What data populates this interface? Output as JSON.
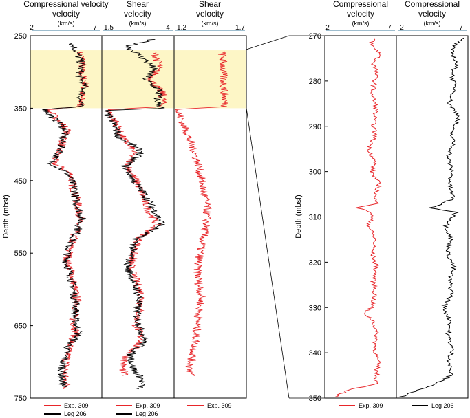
{
  "colors": {
    "exp309": "#e8262a",
    "leg206": "#000000",
    "highlight": "#fdf6c6",
    "axis": "#000000",
    "scalebar": "#7fa7bd"
  },
  "chart_data": [
    {
      "type": "line",
      "title": "Compressional velocity",
      "units": "(km/s)",
      "xlim": [
        2,
        7
      ],
      "xticks": [
        "2",
        "7"
      ],
      "ylim": [
        250,
        750
      ],
      "ylabel": "Depth (mbsf)",
      "yticks": [
        "250",
        "350",
        "450",
        "550",
        "650",
        "750"
      ],
      "highlight_depth": [
        270,
        350
      ],
      "legend": [
        "Exp. 309",
        "Leg 206"
      ],
      "series": [
        {
          "name": "Exp. 309",
          "color": "#e8262a",
          "depth_range": [
            272,
            738
          ],
          "points": [
            [
              272,
              5.4
            ],
            [
              285,
              5.7
            ],
            [
              300,
              5.5
            ],
            [
              315,
              5.9
            ],
            [
              330,
              5.6
            ],
            [
              348,
              5.5
            ],
            [
              352,
              3.2
            ],
            [
              365,
              3.9
            ],
            [
              380,
              4.6
            ],
            [
              395,
              4.3
            ],
            [
              410,
              4.0
            ],
            [
              425,
              3.6
            ],
            [
              440,
              4.8
            ],
            [
              460,
              5.0
            ],
            [
              480,
              5.3
            ],
            [
              500,
              5.5
            ],
            [
              520,
              5.2
            ],
            [
              540,
              4.8
            ],
            [
              560,
              4.6
            ],
            [
              580,
              4.9
            ],
            [
              600,
              5.1
            ],
            [
              620,
              5.3
            ],
            [
              640,
              5.0
            ],
            [
              660,
              5.2
            ],
            [
              680,
              4.7
            ],
            [
              700,
              4.5
            ],
            [
              720,
              4.4
            ],
            [
              738,
              4.6
            ]
          ]
        },
        {
          "name": "Leg 206",
          "color": "#000000",
          "depth_range": [
            260,
            735
          ],
          "points": [
            [
              260,
              4.9
            ],
            [
              275,
              5.3
            ],
            [
              290,
              5.6
            ],
            [
              305,
              5.4
            ],
            [
              320,
              5.8
            ],
            [
              335,
              5.5
            ],
            [
              348,
              5.4
            ],
            [
              352,
              3.0
            ],
            [
              365,
              3.7
            ],
            [
              380,
              4.5
            ],
            [
              395,
              4.2
            ],
            [
              410,
              4.1
            ],
            [
              425,
              3.4
            ],
            [
              440,
              4.6
            ],
            [
              460,
              5.1
            ],
            [
              480,
              5.2
            ],
            [
              500,
              5.6
            ],
            [
              520,
              5.3
            ],
            [
              540,
              4.7
            ],
            [
              560,
              4.5
            ],
            [
              580,
              4.8
            ],
            [
              600,
              5.0
            ],
            [
              620,
              5.2
            ],
            [
              640,
              5.1
            ],
            [
              660,
              5.4
            ],
            [
              680,
              4.6
            ],
            [
              700,
              4.3
            ],
            [
              720,
              4.2
            ],
            [
              735,
              4.3
            ]
          ]
        }
      ]
    },
    {
      "type": "line",
      "title": "Shear velocity",
      "units": "(km/s)",
      "xlim": [
        1.5,
        4
      ],
      "xticks": [
        "1.5",
        "4"
      ],
      "ylim": [
        250,
        750
      ],
      "legend": [
        "Exp. 309",
        "Leg 206"
      ],
      "series": [
        {
          "name": "Exp. 309",
          "color": "#e8262a",
          "depth_range": [
            272,
            720
          ],
          "points": [
            [
              272,
              3.3
            ],
            [
              290,
              3.5
            ],
            [
              310,
              3.2
            ],
            [
              330,
              3.6
            ],
            [
              348,
              3.6
            ],
            [
              352,
              1.7
            ],
            [
              370,
              2.0
            ],
            [
              390,
              2.2
            ],
            [
              410,
              2.6
            ],
            [
              430,
              2.4
            ],
            [
              450,
              2.7
            ],
            [
              470,
              2.9
            ],
            [
              490,
              3.1
            ],
            [
              510,
              3.4
            ],
            [
              530,
              2.8
            ],
            [
              550,
              2.6
            ],
            [
              570,
              2.5
            ],
            [
              590,
              2.7
            ],
            [
              610,
              2.9
            ],
            [
              630,
              2.8
            ],
            [
              650,
              2.7
            ],
            [
              670,
              2.9
            ],
            [
              690,
              2.4
            ],
            [
              705,
              2.2
            ],
            [
              720,
              2.3
            ]
          ]
        },
        {
          "name": "Leg 206",
          "color": "#000000",
          "depth_range": [
            255,
            738
          ],
          "points": [
            [
              255,
              3.2
            ],
            [
              265,
              2.4
            ],
            [
              280,
              2.9
            ],
            [
              295,
              3.3
            ],
            [
              310,
              3.0
            ],
            [
              325,
              3.5
            ],
            [
              340,
              3.4
            ],
            [
              350,
              3.6
            ],
            [
              353,
              1.6
            ],
            [
              370,
              1.9
            ],
            [
              390,
              2.1
            ],
            [
              410,
              2.9
            ],
            [
              430,
              2.3
            ],
            [
              450,
              2.6
            ],
            [
              470,
              3.0
            ],
            [
              490,
              3.3
            ],
            [
              510,
              3.6
            ],
            [
              530,
              2.7
            ],
            [
              550,
              2.5
            ],
            [
              570,
              2.4
            ],
            [
              590,
              2.6
            ],
            [
              610,
              2.8
            ],
            [
              630,
              2.7
            ],
            [
              650,
              2.8
            ],
            [
              670,
              3.0
            ],
            [
              690,
              2.5
            ],
            [
              710,
              2.6
            ],
            [
              725,
              2.9
            ],
            [
              738,
              2.8
            ]
          ]
        }
      ]
    },
    {
      "type": "line",
      "title": "Shear velocity",
      "units": "(km/s)",
      "xlim": [
        1.2,
        1.7
      ],
      "xticks": [
        "1.2",
        "1.7"
      ],
      "ylim": [
        250,
        750
      ],
      "legend": [
        "Exp. 309"
      ],
      "series": [
        {
          "name": "Exp. 309",
          "color": "#e8262a",
          "depth_range": [
            272,
            720
          ],
          "points": [
            [
              272,
              1.53
            ],
            [
              290,
              1.54
            ],
            [
              310,
              1.54
            ],
            [
              330,
              1.55
            ],
            [
              348,
              1.55
            ],
            [
              352,
              1.22
            ],
            [
              370,
              1.26
            ],
            [
              390,
              1.3
            ],
            [
              410,
              1.34
            ],
            [
              430,
              1.37
            ],
            [
              450,
              1.39
            ],
            [
              470,
              1.41
            ],
            [
              490,
              1.43
            ],
            [
              510,
              1.42
            ],
            [
              530,
              1.4
            ],
            [
              550,
              1.38
            ],
            [
              570,
              1.36
            ],
            [
              590,
              1.37
            ],
            [
              610,
              1.39
            ],
            [
              630,
              1.37
            ],
            [
              650,
              1.36
            ],
            [
              670,
              1.35
            ],
            [
              690,
              1.33
            ],
            [
              705,
              1.31
            ],
            [
              720,
              1.32
            ]
          ]
        }
      ]
    },
    {
      "type": "line",
      "title": "Compressional velocity",
      "units": "(km/s)",
      "xlim": [
        2,
        7
      ],
      "xticks": [
        "2",
        "7"
      ],
      "ylim": [
        270,
        350
      ],
      "ylabel": "Depth (mbsf)",
      "yticks": [
        "270",
        "280",
        "290",
        "300",
        "310",
        "320",
        "330",
        "340",
        "350"
      ],
      "legend": [
        "Exp. 309"
      ],
      "series": [
        {
          "name": "Exp. 309",
          "color": "#e8262a",
          "depth_range": [
            270.5,
            349.8
          ],
          "points": [
            [
              270.5,
              5.5
            ],
            [
              272,
              5.2
            ],
            [
              274,
              5.9
            ],
            [
              276,
              5.4
            ],
            [
              278,
              5.6
            ],
            [
              280,
              5.5
            ],
            [
              283,
              5.3
            ],
            [
              286,
              5.6
            ],
            [
              289,
              5.4
            ],
            [
              292,
              5.5
            ],
            [
              295,
              5.1
            ],
            [
              298,
              5.5
            ],
            [
              300,
              5.3
            ],
            [
              303,
              5.8
            ],
            [
              306,
              5.4
            ],
            [
              307,
              5.9
            ],
            [
              308,
              4.2
            ],
            [
              309,
              5.3
            ],
            [
              312,
              5.1
            ],
            [
              315,
              5.5
            ],
            [
              318,
              5.3
            ],
            [
              321,
              5.6
            ],
            [
              324,
              5.4
            ],
            [
              327,
              5.5
            ],
            [
              330,
              5.3
            ],
            [
              331,
              4.7
            ],
            [
              333,
              5.4
            ],
            [
              336,
              5.6
            ],
            [
              339,
              5.5
            ],
            [
              342,
              5.7
            ],
            [
              345,
              5.6
            ],
            [
              347,
              5.6
            ],
            [
              348,
              3.9
            ],
            [
              349.8,
              2.6
            ]
          ]
        }
      ]
    },
    {
      "type": "line",
      "title": "Compressional velocity",
      "units": "(km/s)",
      "xlim": [
        2,
        7
      ],
      "xticks": [
        "2",
        "7"
      ],
      "ylim": [
        270,
        350
      ],
      "legend": [
        "Leg 206"
      ],
      "series": [
        {
          "name": "Leg 206",
          "color": "#000000",
          "depth_range": [
            270.5,
            349.8
          ],
          "points": [
            [
              270.5,
              6.6
            ],
            [
              273,
              5.8
            ],
            [
              276,
              6.2
            ],
            [
              279,
              5.9
            ],
            [
              282,
              6.1
            ],
            [
              285,
              5.7
            ],
            [
              288,
              6.4
            ],
            [
              291,
              5.8
            ],
            [
              294,
              6.0
            ],
            [
              297,
              5.6
            ],
            [
              300,
              5.9
            ],
            [
              303,
              5.7
            ],
            [
              306,
              6.0
            ],
            [
              308,
              4.4
            ],
            [
              309,
              6.2
            ],
            [
              312,
              5.5
            ],
            [
              315,
              5.8
            ],
            [
              318,
              5.6
            ],
            [
              321,
              6.0
            ],
            [
              324,
              5.7
            ],
            [
              327,
              5.9
            ],
            [
              330,
              5.3
            ],
            [
              333,
              5.8
            ],
            [
              336,
              5.6
            ],
            [
              339,
              5.9
            ],
            [
              342,
              5.7
            ],
            [
              345,
              5.8
            ],
            [
              347,
              4.7
            ],
            [
              349,
              2.8
            ],
            [
              349.8,
              2.3
            ]
          ]
        }
      ]
    }
  ]
}
